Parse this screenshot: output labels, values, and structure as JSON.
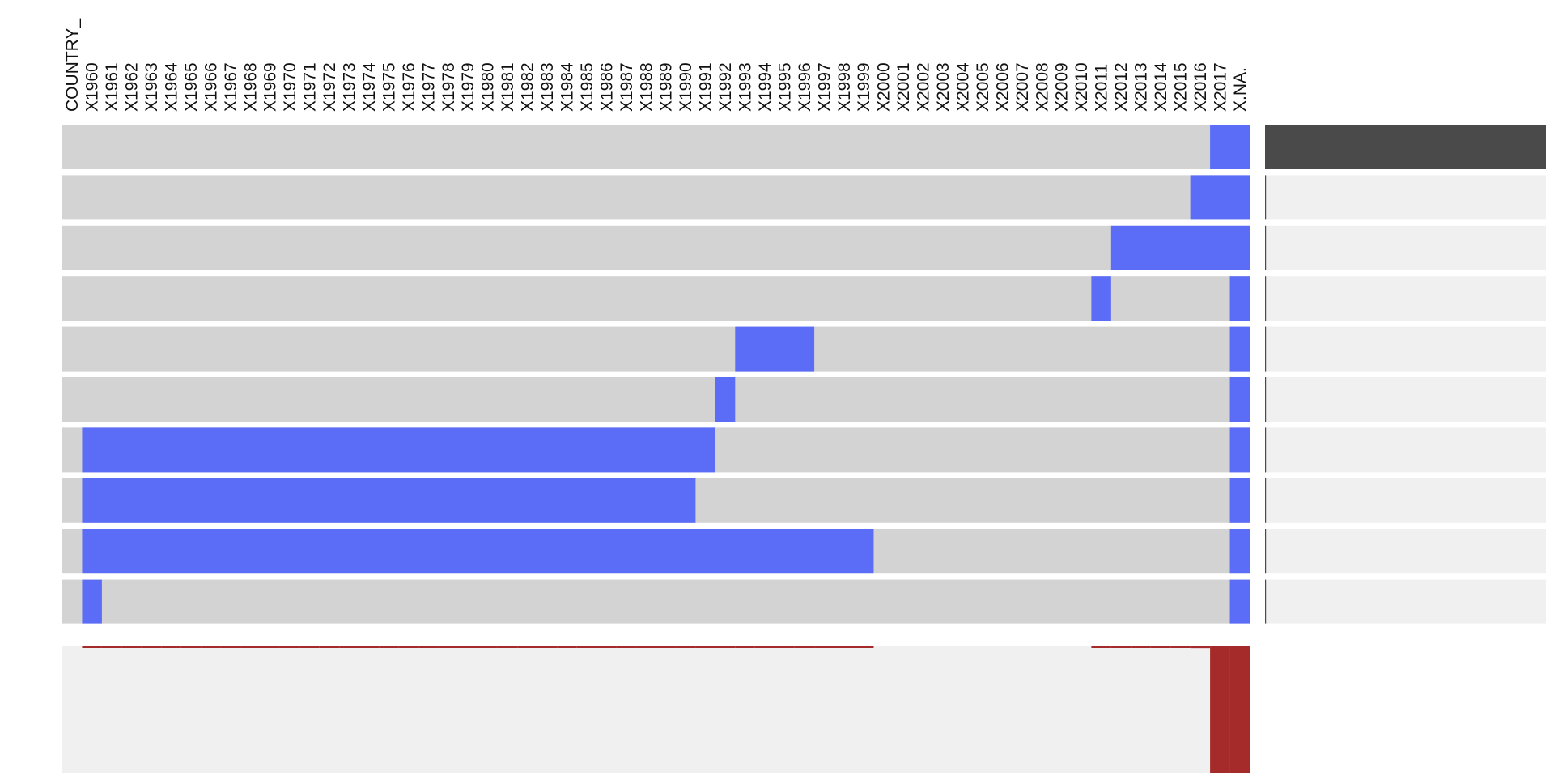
{
  "chart_data": {
    "type": "heatmap",
    "title": "",
    "xlabel": "",
    "ylabel": "",
    "columns": [
      "COUNTRY_",
      "X1960",
      "X1961",
      "X1962",
      "X1963",
      "X1964",
      "X1965",
      "X1966",
      "X1967",
      "X1968",
      "X1969",
      "X1970",
      "X1971",
      "X1972",
      "X1973",
      "X1974",
      "X1975",
      "X1976",
      "X1977",
      "X1978",
      "X1979",
      "X1980",
      "X1981",
      "X1982",
      "X1983",
      "X1984",
      "X1985",
      "X1986",
      "X1987",
      "X1988",
      "X1989",
      "X1990",
      "X1991",
      "X1992",
      "X1993",
      "X1994",
      "X1995",
      "X1996",
      "X1997",
      "X1998",
      "X1999",
      "X2000",
      "X2001",
      "X2002",
      "X2003",
      "X2004",
      "X2005",
      "X2006",
      "X2007",
      "X2008",
      "X2009",
      "X2010",
      "X2011",
      "X2012",
      "X2013",
      "X2014",
      "X2015",
      "X2016",
      "X2017",
      "X.NA."
    ],
    "missing_patterns": [
      {
        "missing": [
          "X2017",
          "X.NA."
        ],
        "frequency": 1.0
      },
      {
        "missing": [
          "X2016",
          "X2017",
          "X.NA."
        ],
        "frequency": 0
      },
      {
        "missing": [
          "X2012",
          "X2013",
          "X2014",
          "X2015",
          "X2016",
          "X2017",
          "X.NA."
        ],
        "frequency": 0
      },
      {
        "missing": [
          "X2011",
          "X.NA."
        ],
        "frequency": 0
      },
      {
        "missing": [
          "X1993",
          "X1994",
          "X1995",
          "X1996",
          "X.NA."
        ],
        "frequency": 0
      },
      {
        "missing": [
          "X1992",
          "X.NA."
        ],
        "frequency": 0
      },
      {
        "missing": [
          "X1960",
          "X1961",
          "X1962",
          "X1963",
          "X1964",
          "X1965",
          "X1966",
          "X1967",
          "X1968",
          "X1969",
          "X1970",
          "X1971",
          "X1972",
          "X1973",
          "X1974",
          "X1975",
          "X1976",
          "X1977",
          "X1978",
          "X1979",
          "X1980",
          "X1981",
          "X1982",
          "X1983",
          "X1984",
          "X1985",
          "X1986",
          "X1987",
          "X1988",
          "X1989",
          "X1990",
          "X1991",
          "X.NA."
        ],
        "frequency": 0
      },
      {
        "missing": [
          "X1960",
          "X1961",
          "X1962",
          "X1963",
          "X1964",
          "X1965",
          "X1966",
          "X1967",
          "X1968",
          "X1969",
          "X1970",
          "X1971",
          "X1972",
          "X1973",
          "X1974",
          "X1975",
          "X1976",
          "X1977",
          "X1978",
          "X1979",
          "X1980",
          "X1981",
          "X1982",
          "X1983",
          "X1984",
          "X1985",
          "X1986",
          "X1987",
          "X1988",
          "X1989",
          "X1990",
          "X.NA."
        ],
        "frequency": 0
      },
      {
        "missing": [
          "X1960",
          "X1961",
          "X1962",
          "X1963",
          "X1964",
          "X1965",
          "X1966",
          "X1967",
          "X1968",
          "X1969",
          "X1970",
          "X1971",
          "X1972",
          "X1973",
          "X1974",
          "X1975",
          "X1976",
          "X1977",
          "X1978",
          "X1979",
          "X1980",
          "X1981",
          "X1982",
          "X1983",
          "X1984",
          "X1985",
          "X1986",
          "X1987",
          "X1988",
          "X1989",
          "X1990",
          "X1991",
          "X1992",
          "X1993",
          "X1994",
          "X1995",
          "X1996",
          "X1997",
          "X1998",
          "X1999",
          "X.NA."
        ],
        "frequency": 0
      },
      {
        "missing": [
          "X1960",
          "X.NA."
        ],
        "frequency": 0
      }
    ],
    "column_missing_fraction": {
      "X1960": 0.01,
      "X1961": 0.01,
      "X1962": 0.01,
      "X1963": 0.01,
      "X1964": 0.01,
      "X1965": 0.01,
      "X1966": 0.01,
      "X1967": 0.01,
      "X1968": 0.01,
      "X1969": 0.01,
      "X1970": 0.01,
      "X1971": 0.01,
      "X1972": 0.01,
      "X1973": 0.01,
      "X1974": 0.01,
      "X1975": 0.01,
      "X1976": 0.01,
      "X1977": 0.01,
      "X1978": 0.01,
      "X1979": 0.01,
      "X1980": 0.01,
      "X1981": 0.01,
      "X1982": 0.01,
      "X1983": 0.01,
      "X1984": 0.01,
      "X1985": 0.01,
      "X1986": 0.01,
      "X1987": 0.01,
      "X1988": 0.01,
      "X1989": 0.01,
      "X1990": 0.01,
      "X1991": 0.01,
      "X1992": 0.01,
      "X1993": 0.01,
      "X1994": 0.01,
      "X1995": 0.01,
      "X1996": 0.01,
      "X1997": 0.01,
      "X1998": 0.01,
      "X1999": 0.01,
      "X2011": 0.01,
      "X2012": 0.01,
      "X2013": 0.01,
      "X2014": 0.01,
      "X2015": 0.01,
      "X2016": 0.02,
      "X2017": 1.0,
      "X.NA.": 1.0
    },
    "grid": false,
    "legend": "none"
  },
  "colors": {
    "present": "#d3d3d3",
    "missing": "#5b6cf7",
    "frequency_bar": "#4a4a4a",
    "frequency_bg": "#f0f0f0",
    "column_bar": "#a52a2a",
    "column_bg": "#f0f0f0"
  }
}
